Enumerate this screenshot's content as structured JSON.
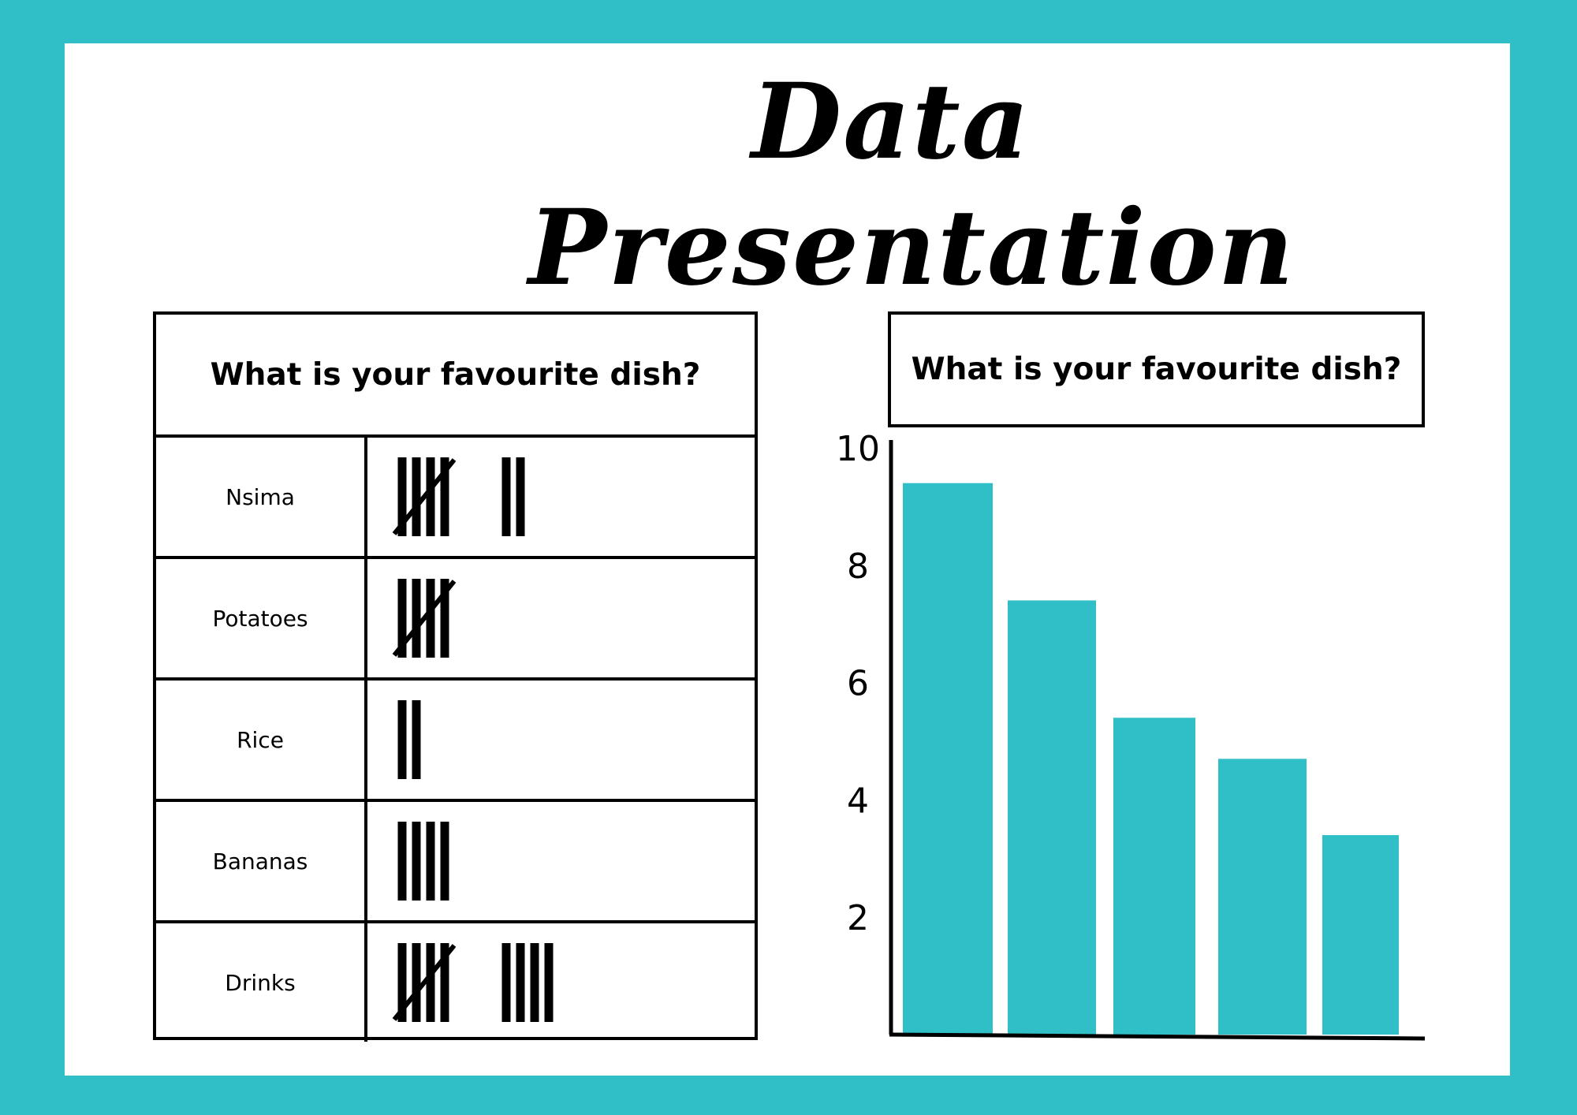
{
  "title": "Data Presentation",
  "colors": {
    "frame": "#30bfc7",
    "bar": "#30bfc7",
    "card": "#ffffff",
    "ink": "#000000"
  },
  "table": {
    "header": "What is your favourite dish?",
    "rows": [
      {
        "label": "Nsima",
        "tally": 7
      },
      {
        "label": "Potatoes",
        "tally": 5
      },
      {
        "label": "Rice",
        "tally": 2
      },
      {
        "label": "Bananas",
        "tally": 4
      },
      {
        "label": "Drinks",
        "tally": 9
      }
    ]
  },
  "chart_data": {
    "type": "bar",
    "title": "What is your favourite dish?",
    "values": [
      9.4,
      7.4,
      5.4,
      4.7,
      3.4
    ],
    "yticks": [
      "2",
      "4",
      "6",
      "8",
      "10"
    ],
    "ylim": [
      0,
      10
    ],
    "grid": false
  }
}
